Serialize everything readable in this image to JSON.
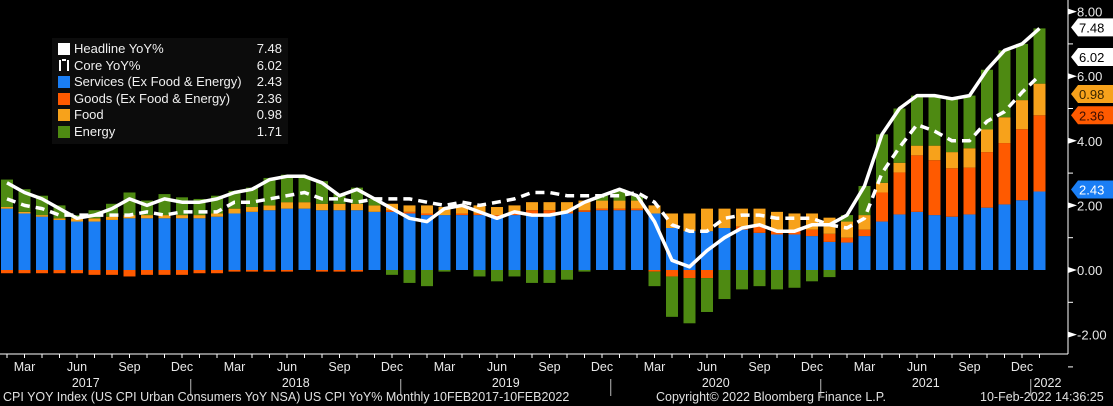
{
  "chart_data": {
    "type": "bar",
    "stacked": true,
    "x_start": "Feb 2017",
    "x_end": "Jan 2022",
    "frequency": "Monthly",
    "x_tick_labels": [
      "Mar",
      "Jun",
      "Sep",
      "Dec"
    ],
    "year_labels": [
      "2017",
      "2018",
      "2019",
      "2020",
      "2021",
      "2022"
    ],
    "ylim": [
      -2.6,
      8.3
    ],
    "y_ticks": [
      -2,
      0,
      2,
      4,
      6,
      8
    ],
    "y_tick_labels": [
      "-2.00",
      "0.00",
      "2.00",
      "4.00",
      "6.00",
      "8.00"
    ],
    "y_axis_side": "right",
    "grid": false,
    "legend_placement": "top-left",
    "series": [
      {
        "name": "Headline YoY%",
        "kind": "line",
        "color": "#ffffff",
        "last": "7.48",
        "values": [
          2.7,
          2.4,
          2.2,
          1.9,
          1.6,
          1.7,
          1.9,
          2.2,
          2.0,
          2.2,
          2.1,
          2.1,
          2.2,
          2.4,
          2.5,
          2.8,
          2.9,
          2.9,
          2.7,
          2.3,
          2.5,
          2.2,
          1.9,
          1.6,
          1.5,
          1.9,
          2.0,
          1.8,
          1.6,
          1.8,
          1.7,
          1.7,
          1.8,
          2.1,
          2.3,
          2.5,
          2.3,
          1.5,
          0.3,
          0.1,
          0.6,
          1.0,
          1.3,
          1.4,
          1.2,
          1.2,
          1.4,
          1.4,
          1.7,
          2.6,
          4.2,
          5.0,
          5.4,
          5.4,
          5.3,
          5.4,
          6.2,
          6.8,
          7.0,
          7.48
        ]
      },
      {
        "name": "Core YoY%",
        "kind": "dashed-line",
        "color": "#ffffff",
        "last": "6.02",
        "values": [
          2.2,
          2.0,
          1.9,
          1.7,
          1.7,
          1.7,
          1.7,
          1.7,
          1.8,
          1.7,
          1.8,
          1.8,
          1.8,
          2.1,
          2.1,
          2.2,
          2.3,
          2.4,
          2.2,
          2.2,
          2.1,
          2.2,
          2.2,
          2.2,
          2.1,
          2.0,
          2.1,
          2.0,
          2.1,
          2.2,
          2.4,
          2.4,
          2.3,
          2.3,
          2.3,
          2.3,
          2.4,
          2.1,
          1.4,
          1.2,
          1.2,
          1.6,
          1.7,
          1.7,
          1.6,
          1.6,
          1.6,
          1.4,
          1.3,
          1.6,
          3.0,
          3.8,
          4.5,
          4.3,
          4.0,
          4.0,
          4.6,
          4.9,
          5.5,
          6.02
        ]
      },
      {
        "name": "Services (Ex Food & Energy)",
        "kind": "bar",
        "color": "#1a7ef5",
        "tag_text_color": "#ffffff",
        "last": "2.43",
        "values": [
          1.9,
          1.75,
          1.65,
          1.55,
          1.5,
          1.5,
          1.55,
          1.6,
          1.6,
          1.6,
          1.6,
          1.6,
          1.65,
          1.75,
          1.8,
          1.85,
          1.9,
          1.9,
          1.85,
          1.85,
          1.85,
          1.8,
          1.8,
          1.75,
          1.7,
          1.7,
          1.7,
          1.7,
          1.65,
          1.7,
          1.75,
          1.75,
          1.75,
          1.8,
          1.85,
          1.85,
          1.85,
          1.75,
          1.3,
          1.2,
          1.2,
          1.3,
          1.25,
          1.15,
          1.1,
          1.1,
          1.05,
          0.87,
          0.85,
          1.05,
          1.5,
          1.72,
          1.8,
          1.7,
          1.65,
          1.72,
          1.93,
          2.03,
          2.16,
          2.43
        ]
      },
      {
        "name": "Goods (Ex Food & Energy)",
        "kind": "bar",
        "color": "#ff5a00",
        "tag_text_color": "#3a0d00",
        "last": "2.36",
        "values": [
          -0.1,
          -0.1,
          -0.1,
          -0.1,
          -0.1,
          -0.15,
          -0.15,
          -0.2,
          -0.15,
          -0.15,
          -0.15,
          -0.1,
          -0.1,
          -0.05,
          -0.05,
          -0.05,
          -0.05,
          0,
          -0.05,
          -0.05,
          -0.05,
          0,
          0.05,
          0.05,
          0.05,
          0,
          0.05,
          0.05,
          0.05,
          0.05,
          0.1,
          0.1,
          0.05,
          0.05,
          0.05,
          0.05,
          0.05,
          -0.05,
          -0.2,
          -0.25,
          -0.25,
          0,
          0.1,
          0.2,
          0.15,
          0.15,
          0.2,
          0.25,
          0.15,
          0.2,
          0.9,
          1.3,
          1.75,
          1.7,
          1.5,
          1.45,
          1.72,
          1.9,
          2.2,
          2.36
        ]
      },
      {
        "name": "Food",
        "kind": "bar",
        "color": "#f7a21b",
        "tag_text_color": "#3a2500",
        "last": "0.98",
        "values": [
          0.05,
          0.05,
          0.05,
          0.05,
          0.1,
          0.1,
          0.1,
          0.1,
          0.1,
          0.1,
          0.1,
          0.1,
          0.1,
          0.15,
          0.15,
          0.15,
          0.2,
          0.2,
          0.2,
          0.2,
          0.2,
          0.2,
          0.2,
          0.2,
          0.25,
          0.25,
          0.25,
          0.25,
          0.25,
          0.25,
          0.25,
          0.25,
          0.3,
          0.3,
          0.25,
          0.25,
          0.25,
          0.25,
          0.45,
          0.55,
          0.7,
          0.6,
          0.55,
          0.55,
          0.55,
          0.5,
          0.5,
          0.5,
          0.5,
          0.45,
          0.3,
          0.3,
          0.3,
          0.45,
          0.5,
          0.6,
          0.7,
          0.8,
          0.9,
          0.98
        ]
      },
      {
        "name": "Energy",
        "kind": "bar",
        "color": "#4e8a12",
        "last": "1.71",
        "values": [
          0.85,
          0.7,
          0.6,
          0.4,
          0.1,
          0.25,
          0.4,
          0.7,
          0.45,
          0.65,
          0.55,
          0.5,
          0.55,
          0.55,
          0.6,
          0.85,
          0.85,
          0.8,
          0.7,
          0.3,
          0.5,
          0.2,
          -0.15,
          -0.4,
          -0.5,
          -0.05,
          0,
          -0.2,
          -0.35,
          -0.2,
          -0.4,
          -0.4,
          -0.3,
          -0.05,
          0.15,
          0.35,
          0.15,
          -0.45,
          -1.25,
          -1.4,
          -1.05,
          -0.9,
          -0.6,
          -0.5,
          -0.6,
          -0.55,
          -0.35,
          -0.22,
          0.2,
          0.9,
          1.5,
          1.68,
          1.55,
          1.55,
          1.65,
          1.63,
          1.85,
          2.07,
          1.74,
          1.71
        ]
      }
    ]
  },
  "footer": {
    "left": "CPI YOY Index (US CPI Urban Consumers YoY NSA) US CPI YoY%  Monthly 10FEB2017-10FEB2022",
    "center": "Copyright© 2022 Bloomberg Finance L.P.",
    "right": "10-Feb-2022 14:36:25"
  }
}
